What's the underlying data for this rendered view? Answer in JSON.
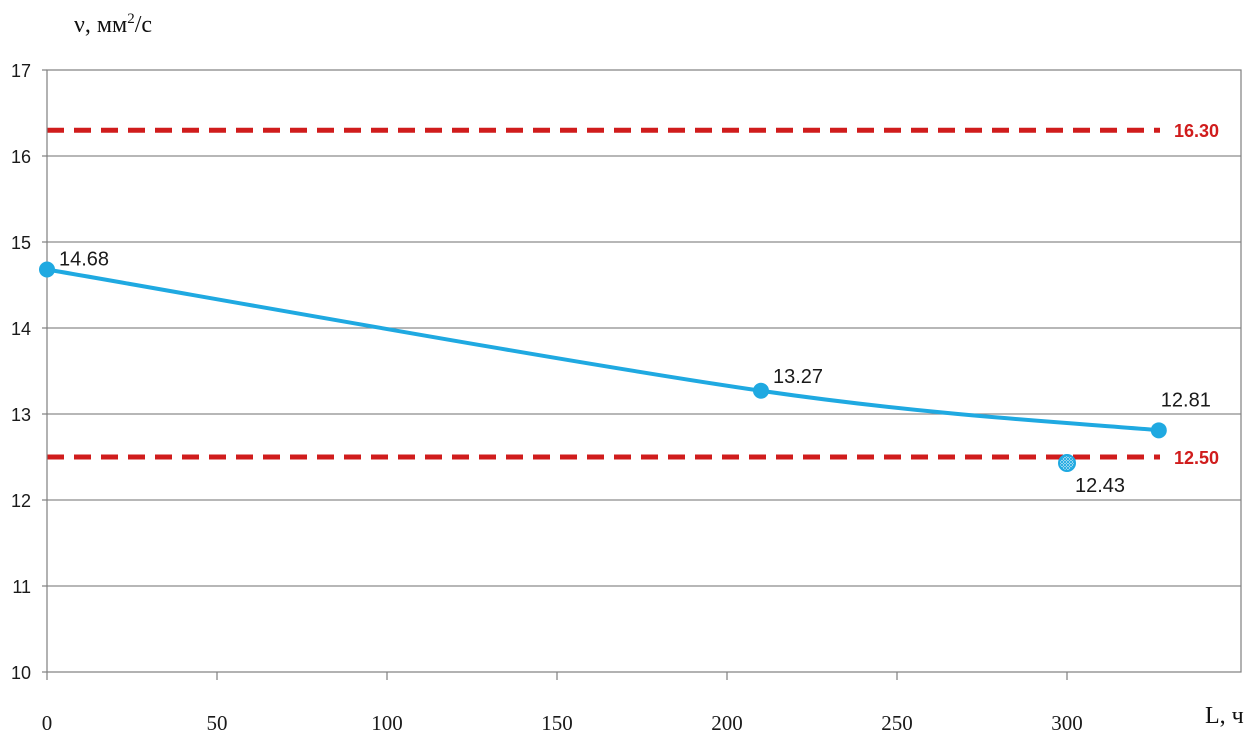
{
  "chart_data": {
    "type": "line",
    "title": "",
    "ylabel": {
      "prefix": "ν, мм",
      "superscript": "2",
      "suffix": "/с"
    },
    "xlabel": "L, ч",
    "xlim": [
      0,
      350
    ],
    "ylim": [
      10,
      17
    ],
    "x_ticks": [
      0,
      50,
      100,
      150,
      200,
      250,
      300
    ],
    "y_ticks": [
      10,
      11,
      12,
      13,
      14,
      15,
      16,
      17
    ],
    "grid": "horizontal",
    "legend": "none",
    "series": [
      {
        "color": "#1fa9e1",
        "smooth": true,
        "points": [
          {
            "x": 0,
            "y": 14.68,
            "label": "14.68"
          },
          {
            "x": 210,
            "y": 13.27,
            "label": "13.27"
          },
          {
            "x": 327,
            "y": 12.81,
            "label": "12.81"
          }
        ]
      }
    ],
    "extra_points": [
      {
        "x": 300,
        "y": 12.43,
        "label": "12.43",
        "color": "#1fa9e1",
        "marker": "hatched"
      }
    ],
    "reference_lines": [
      {
        "y": 16.3,
        "label": "16.30",
        "color": "#d01c1c",
        "style": "dashed"
      },
      {
        "y": 12.5,
        "label": "12.50",
        "color": "#d01c1c",
        "style": "dashed"
      }
    ],
    "colors": {
      "axis": "#7f7f7f",
      "grid": "#8c8c8c",
      "tick_label": "#1a1a1a",
      "point_label": "#1a1a1a"
    }
  }
}
